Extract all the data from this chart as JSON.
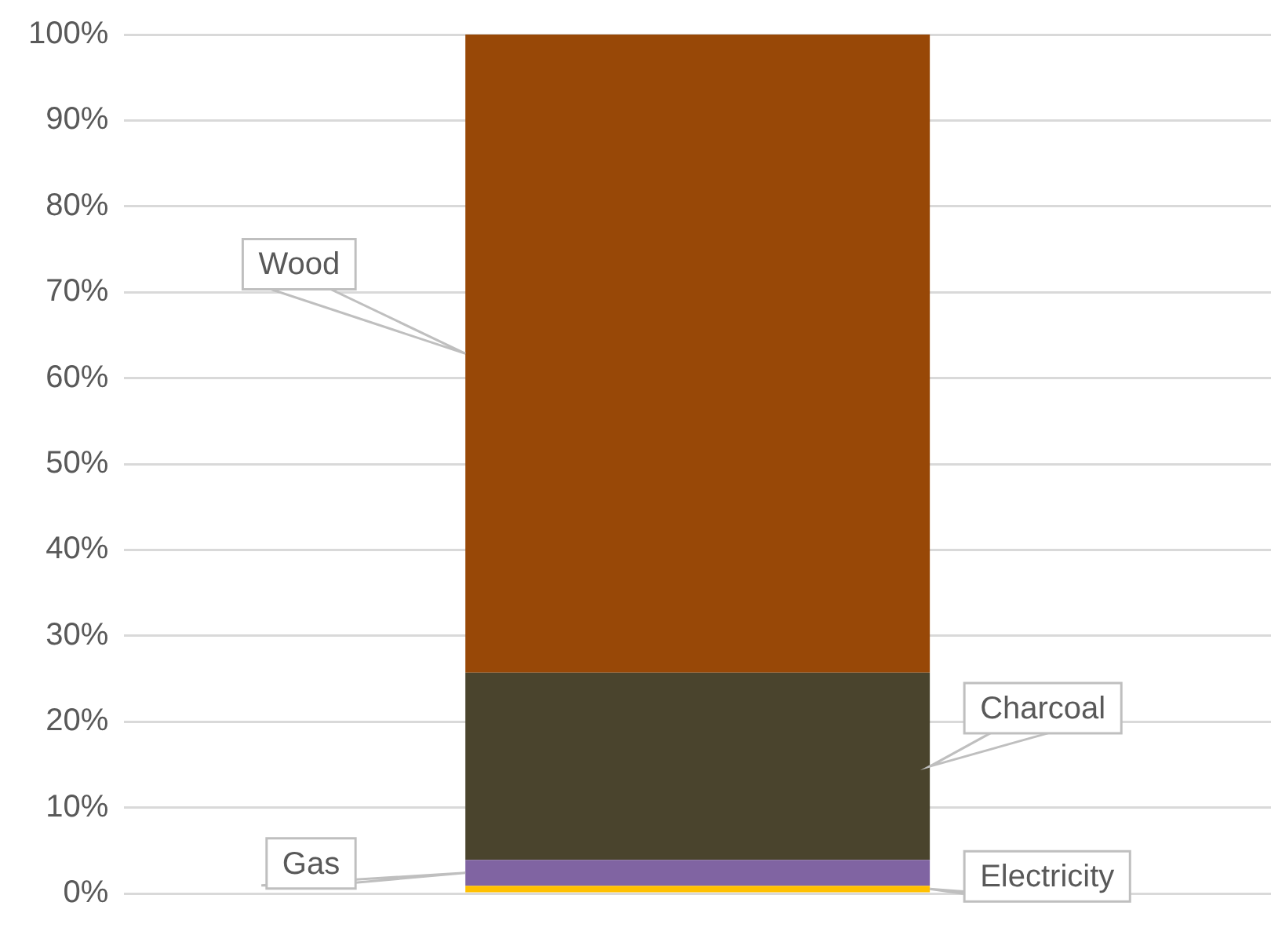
{
  "chart_data": {
    "type": "bar",
    "stacked": true,
    "categories": [
      null
    ],
    "series": [
      {
        "name": "Electricity",
        "color": "#ffc000",
        "values": [
          0.9
        ]
      },
      {
        "name": "Gas",
        "color": "#8064a2",
        "values": [
          3.0
        ]
      },
      {
        "name": "Charcoal",
        "color": "#4a442d",
        "values": [
          21.8
        ]
      },
      {
        "name": "Wood",
        "color": "#984807",
        "values": [
          74.3
        ]
      }
    ],
    "ylim": [
      0,
      100
    ],
    "yticks": [
      {
        "value": 0,
        "label": "0%"
      },
      {
        "value": 10,
        "label": "10%"
      },
      {
        "value": 20,
        "label": "20%"
      },
      {
        "value": 30,
        "label": "30%"
      },
      {
        "value": 40,
        "label": "40%"
      },
      {
        "value": 50,
        "label": "50%"
      },
      {
        "value": 60,
        "label": "60%"
      },
      {
        "value": 70,
        "label": "70%"
      },
      {
        "value": 80,
        "label": "80%"
      },
      {
        "value": 90,
        "label": "90%"
      },
      {
        "value": 100,
        "label": "100%"
      }
    ],
    "grid": "y",
    "legend": false,
    "tick_labels": "y"
  }
}
